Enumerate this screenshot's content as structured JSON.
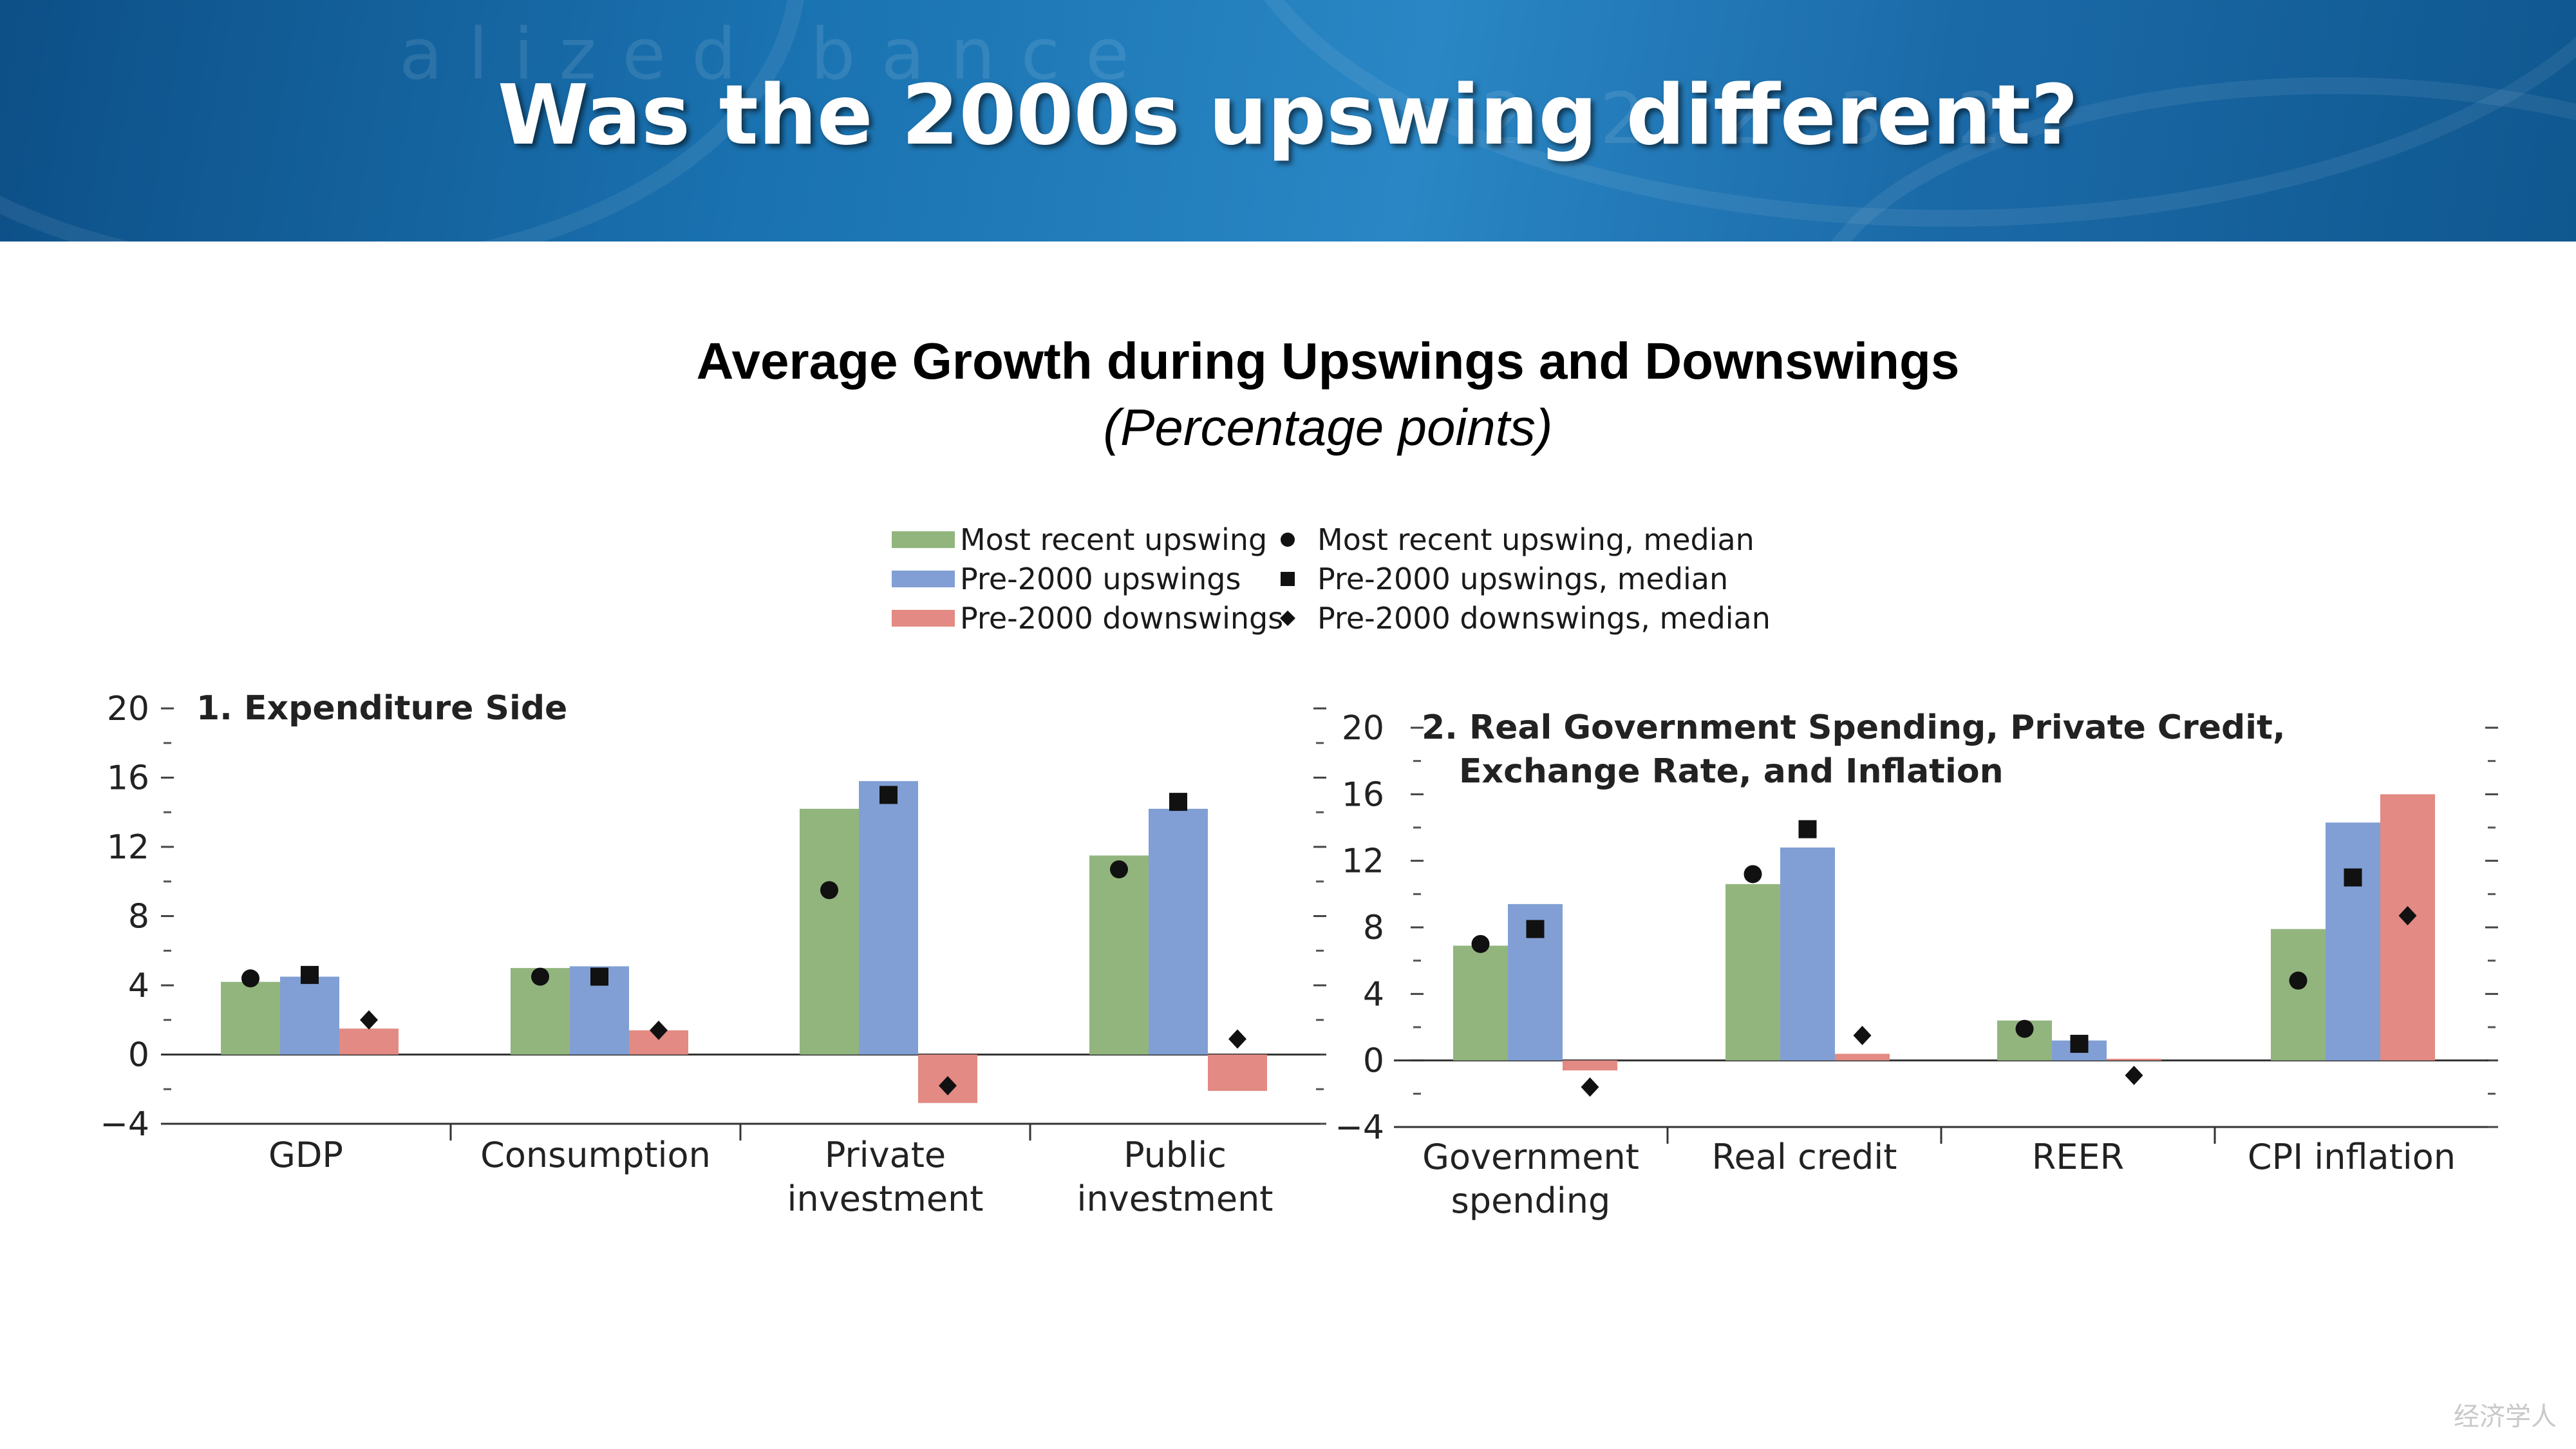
{
  "slide": {
    "title": "Was the 2000s upswing different?"
  },
  "chart": {
    "title": "Average Growth during Upswings and Downswings",
    "subtitle": "(Percentage points)"
  },
  "legend": {
    "items": [
      {
        "label": "Most recent upswing",
        "kind": "bar",
        "color": "#92b57e"
      },
      {
        "label": "Pre-2000 upswings",
        "kind": "bar",
        "color": "#819fd4"
      },
      {
        "label": "Pre-2000 downswings",
        "kind": "bar",
        "color": "#e28a83"
      },
      {
        "label": "Most recent upswing, median",
        "kind": "marker",
        "marker": "circle"
      },
      {
        "label": "Pre-2000 upswings, median",
        "kind": "marker",
        "marker": "square"
      },
      {
        "label": "Pre-2000 downswings, median",
        "kind": "marker",
        "marker": "diamond"
      }
    ]
  },
  "chart_data": [
    {
      "type": "bar",
      "title": "1. Expenditure Side",
      "ylim": [
        -4,
        20
      ],
      "yticks": [
        "20",
        "16",
        "12",
        "8",
        "4",
        "0",
        "−4"
      ],
      "categories": [
        "GDP",
        "Consumption",
        "Private investment",
        "Public investment"
      ],
      "category_lines": [
        [
          "GDP"
        ],
        [
          "Consumption"
        ],
        [
          "Private",
          "investment"
        ],
        [
          "Public",
          "investment"
        ]
      ],
      "series": [
        {
          "name": "Most recent upswing",
          "color": "#92b57e",
          "values": [
            4.2,
            5.0,
            14.2,
            11.5
          ]
        },
        {
          "name": "Pre-2000 upswings",
          "color": "#819fd4",
          "values": [
            4.5,
            5.1,
            15.8,
            14.2
          ]
        },
        {
          "name": "Pre-2000 downswings",
          "color": "#e28a83",
          "values": [
            1.5,
            1.4,
            -2.8,
            -2.1
          ]
        }
      ],
      "medians": [
        {
          "name": "Most recent upswing, median",
          "marker": "circle",
          "values": [
            4.4,
            4.5,
            9.5,
            10.7
          ]
        },
        {
          "name": "Pre-2000 upswings, median",
          "marker": "square",
          "values": [
            4.6,
            4.5,
            15.0,
            14.6
          ]
        },
        {
          "name": "Pre-2000 downswings, median",
          "marker": "diamond",
          "values": [
            2.0,
            1.4,
            -1.8,
            0.9
          ]
        }
      ]
    },
    {
      "type": "bar",
      "title": "2. Real Government Spending, Private Credit, Exchange Rate, and Inflation",
      "title_lines": [
        "2. Real Government Spending, Private Credit,",
        "Exchange Rate, and Inflation"
      ],
      "ylim": [
        -4,
        20
      ],
      "yticks": [
        "20",
        "16",
        "12",
        "8",
        "4",
        "0",
        "−4"
      ],
      "categories": [
        "Government spending",
        "Real credit",
        "REER",
        "CPI inflation"
      ],
      "category_lines": [
        [
          "Government",
          "spending"
        ],
        [
          "Real credit"
        ],
        [
          "REER"
        ],
        [
          "CPI inflation"
        ]
      ],
      "series": [
        {
          "name": "Most recent upswing",
          "color": "#92b57e",
          "values": [
            6.9,
            10.6,
            2.4,
            7.9
          ]
        },
        {
          "name": "Pre-2000 upswings",
          "color": "#819fd4",
          "values": [
            9.4,
            12.8,
            1.2,
            14.3
          ]
        },
        {
          "name": "Pre-2000 downswings",
          "color": "#e28a83",
          "values": [
            -0.6,
            0.4,
            0.1,
            16.0
          ]
        }
      ],
      "medians": [
        {
          "name": "Most recent upswing, median",
          "marker": "circle",
          "values": [
            7.0,
            11.2,
            1.9,
            4.8
          ]
        },
        {
          "name": "Pre-2000 upswings, median",
          "marker": "square",
          "values": [
            7.9,
            13.9,
            1.0,
            11.0
          ]
        },
        {
          "name": "Pre-2000 downswings, median",
          "marker": "diamond",
          "values": [
            -1.6,
            1.5,
            -0.9,
            8.7
          ]
        }
      ]
    }
  ],
  "watermark": "经济学人"
}
